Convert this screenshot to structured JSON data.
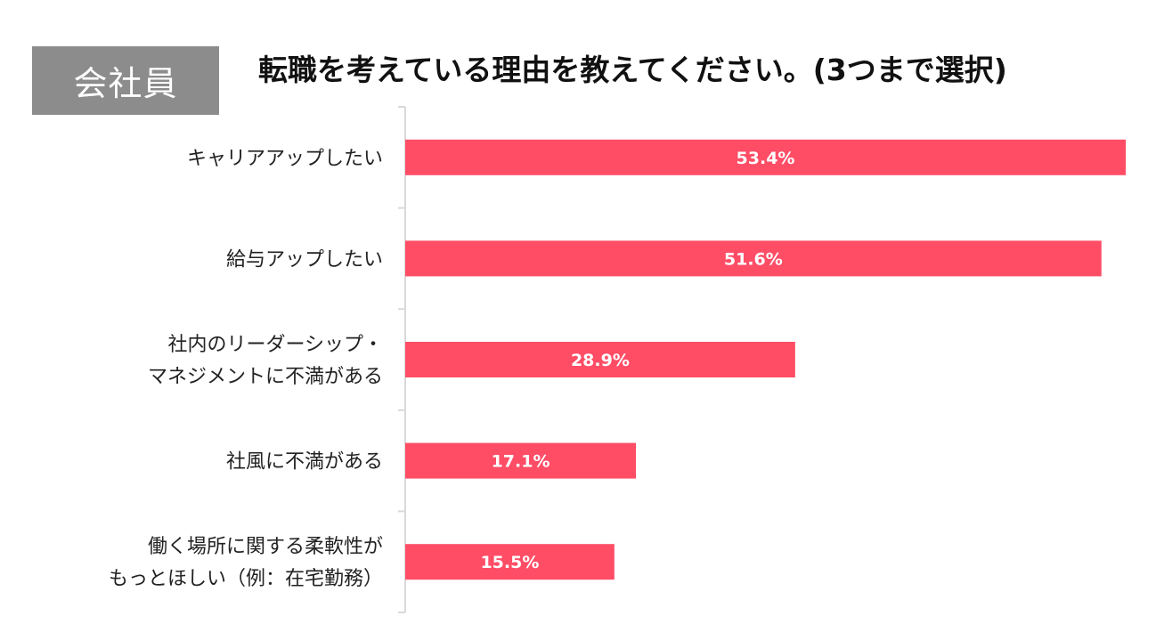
{
  "badge_label": "会社員",
  "chart_data": {
    "type": "bar",
    "orientation": "horizontal",
    "title": "転職を考えている理由を教えてください。(3つまで選択)",
    "categories": [
      [
        "キャリアアップしたい"
      ],
      [
        "給与アップしたい"
      ],
      [
        "社内のリーダーシップ・",
        "マネジメントに不満がある"
      ],
      [
        "社風に不満がある"
      ],
      [
        "働く場所に関する柔軟性が",
        "もっとほしい（例：在宅勤務）"
      ]
    ],
    "values": [
      53.4,
      51.6,
      28.9,
      17.1,
      15.5
    ],
    "value_labels": [
      "53.4%",
      "51.6%",
      "28.9%",
      "17.1%",
      "15.5%"
    ],
    "xlim": [
      0,
      53.4
    ],
    "grid": false,
    "bar_color": "#ff4d66",
    "axis_color": "#d9d9d9"
  }
}
